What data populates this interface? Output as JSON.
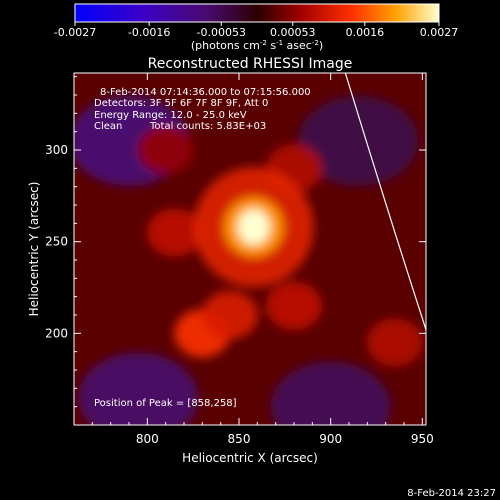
{
  "chart_data": {
    "type": "heatmap",
    "title": "Reconstructed RHESSI Image",
    "xlabel": "Heliocentric X (arcsec)",
    "ylabel": "Heliocentric Y (arcsec)",
    "xlim": [
      760,
      952
    ],
    "ylim": [
      150,
      342
    ],
    "x_ticks": [
      "800",
      "850",
      "900",
      "950"
    ],
    "y_ticks": [
      "200",
      "250",
      "300"
    ],
    "colorbar": {
      "range": [
        -0.0027,
        0.0027
      ],
      "tick_labels": [
        "-0.0027",
        "-0.0016",
        "-0.00053",
        "0.00053",
        "0.0016",
        "0.0027"
      ],
      "unit_prefix": "(photons cm",
      "unit_exp1": "-2",
      "unit_mid": " s",
      "unit_exp2": "-1",
      "unit_mid2": " asec",
      "unit_suffix": ")"
    },
    "annotations": {
      "time_range": "8-Feb-2014 07:14:36.000 to 07:15:56.000",
      "detectors": "Detectors: 3F 5F 6F 7F 8F 9F, Att 0",
      "energy": "Energy Range: 12.0 - 25.0 keV",
      "method": "Clean",
      "total_counts": "Total counts: 5.83E+03",
      "peak": "Position of Peak = [858,258]"
    },
    "peak": {
      "x": 858,
      "y": 258,
      "value": 0.0027
    },
    "secondary_sources": [
      {
        "x": 830,
        "y": 200,
        "value": 0.0014
      },
      {
        "x": 845,
        "y": 210,
        "value": 0.0011
      },
      {
        "x": 880,
        "y": 215,
        "value": 0.0009
      },
      {
        "x": 815,
        "y": 255,
        "value": 0.0009
      },
      {
        "x": 880,
        "y": 290,
        "value": 0.0008
      },
      {
        "x": 935,
        "y": 195,
        "value": 0.0008
      },
      {
        "x": 810,
        "y": 300,
        "value": 0.0006
      }
    ],
    "negative_regions": [
      {
        "x": 790,
        "y": 305,
        "value": -0.0008
      },
      {
        "x": 795,
        "y": 165,
        "value": -0.0007
      },
      {
        "x": 900,
        "y": 160,
        "value": -0.0006
      },
      {
        "x": 915,
        "y": 305,
        "value": -0.0005
      }
    ],
    "limb_curve": [
      {
        "x": 908,
        "y": 342
      },
      {
        "x": 930,
        "y": 270
      },
      {
        "x": 952,
        "y": 202
      }
    ],
    "colors": {
      "background": "#000000",
      "text": "#ffffff",
      "limb": "#ffffff"
    }
  },
  "footer": {
    "timestamp": "8-Feb-2014 23:27"
  }
}
